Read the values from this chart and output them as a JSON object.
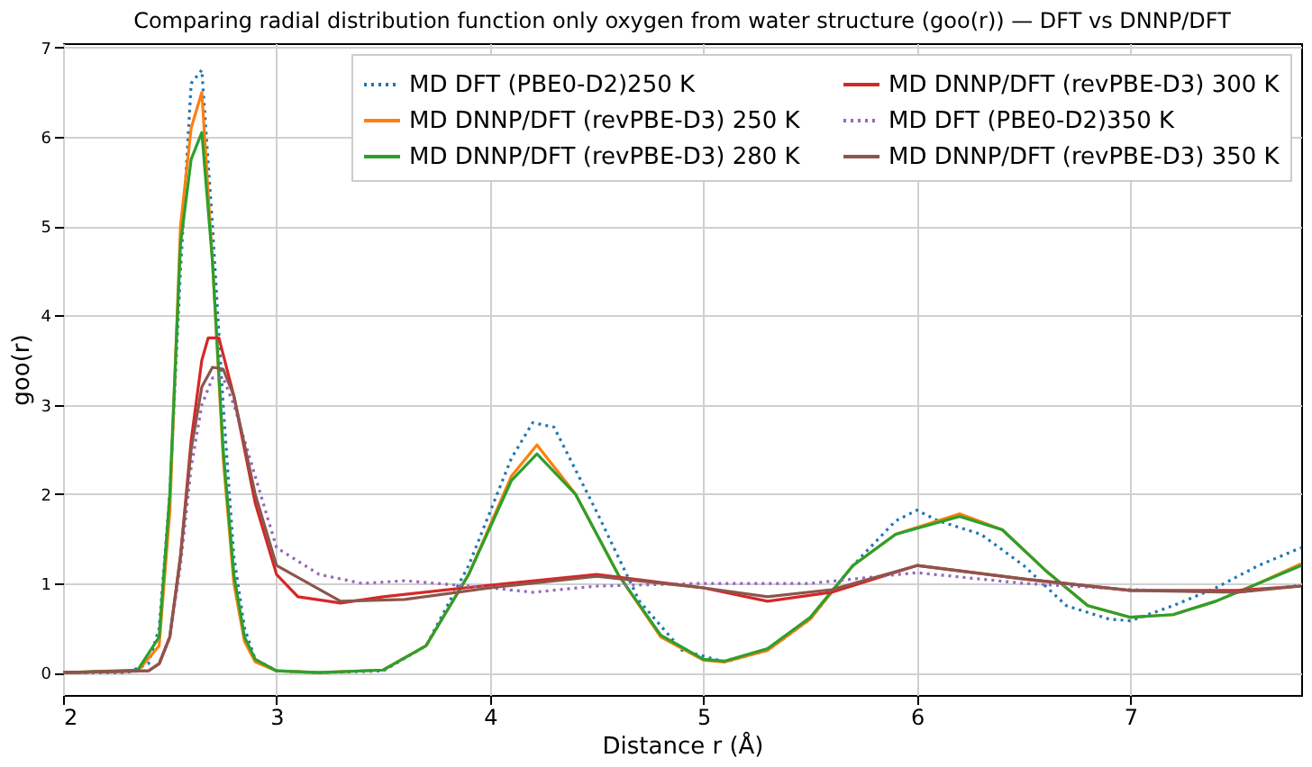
{
  "chart_data": {
    "type": "line",
    "title": "Comparing radial distribution function only oxygen from water structure (goo(r)) — DFT vs DNNP/DFT",
    "xlabel": "Distance r (Å)",
    "ylabel": "goo(r)",
    "xlim": [
      2,
      7.8
    ],
    "ylim": [
      -0.25,
      7.05
    ],
    "xticks": [
      2,
      3,
      4,
      5,
      6,
      7
    ],
    "yticks": [
      0,
      1,
      2,
      3,
      4,
      5,
      6,
      7
    ],
    "grid": true,
    "legend": "top right",
    "marker": "none",
    "series": [
      {
        "name": "MD DFT (PBE0-D2)250 K",
        "color": "#1f77b4",
        "line_style": "dotted",
        "x": [
          2.0,
          2.3,
          2.4,
          2.45,
          2.5,
          2.55,
          2.6,
          2.65,
          2.7,
          2.75,
          2.8,
          2.85,
          2.9,
          3.0,
          3.2,
          3.5,
          3.7,
          3.9,
          4.1,
          4.2,
          4.3,
          4.5,
          4.7,
          4.9,
          5.1,
          5.3,
          5.5,
          5.7,
          5.9,
          6.0,
          6.1,
          6.3,
          6.5,
          6.7,
          6.9,
          7.0,
          7.2,
          7.4,
          7.6,
          7.8
        ],
        "values": [
          0,
          0,
          0.1,
          0.5,
          2.0,
          4.5,
          6.6,
          6.75,
          5.0,
          3.0,
          1.3,
          0.5,
          0.15,
          0.02,
          0,
          0.02,
          0.3,
          1.2,
          2.4,
          2.8,
          2.75,
          1.8,
          0.8,
          0.25,
          0.12,
          0.25,
          0.6,
          1.2,
          1.7,
          1.82,
          1.7,
          1.55,
          1.2,
          0.75,
          0.6,
          0.58,
          0.75,
          0.95,
          1.2,
          1.4
        ]
      },
      {
        "name": "MD DNNP/DFT (revPBE-D3) 250 K",
        "color": "#ff7f0e",
        "line_style": "solid",
        "x": [
          2.0,
          2.35,
          2.45,
          2.5,
          2.55,
          2.6,
          2.65,
          2.7,
          2.75,
          2.8,
          2.85,
          2.9,
          3.0,
          3.2,
          3.5,
          3.7,
          3.9,
          4.1,
          4.22,
          4.4,
          4.6,
          4.8,
          5.0,
          5.1,
          5.3,
          5.5,
          5.7,
          5.9,
          6.2,
          6.4,
          6.6,
          6.8,
          7.0,
          7.2,
          7.4,
          7.6,
          7.8
        ],
        "values": [
          0,
          0.02,
          0.3,
          1.8,
          5.0,
          6.1,
          6.5,
          4.6,
          2.4,
          1.0,
          0.35,
          0.12,
          0.02,
          0,
          0.03,
          0.3,
          1.1,
          2.2,
          2.55,
          2.0,
          1.1,
          0.4,
          0.14,
          0.12,
          0.25,
          0.6,
          1.2,
          1.55,
          1.78,
          1.6,
          1.15,
          0.75,
          0.62,
          0.65,
          0.8,
          1.0,
          1.22
        ]
      },
      {
        "name": "MD DNNP/DFT (revPBE-D3) 280 K",
        "color": "#2ca02c",
        "line_style": "solid",
        "x": [
          2.0,
          2.35,
          2.45,
          2.5,
          2.55,
          2.6,
          2.65,
          2.7,
          2.75,
          2.8,
          2.85,
          2.9,
          3.0,
          3.2,
          3.5,
          3.7,
          3.9,
          4.1,
          4.22,
          4.4,
          4.6,
          4.8,
          5.0,
          5.1,
          5.3,
          5.5,
          5.7,
          5.9,
          6.2,
          6.4,
          6.6,
          6.8,
          7.0,
          7.2,
          7.4,
          7.6,
          7.8
        ],
        "values": [
          0,
          0.03,
          0.4,
          2.0,
          4.8,
          5.75,
          6.05,
          4.6,
          2.5,
          1.1,
          0.4,
          0.15,
          0.02,
          0,
          0.03,
          0.3,
          1.1,
          2.15,
          2.45,
          2.0,
          1.1,
          0.42,
          0.15,
          0.13,
          0.27,
          0.62,
          1.2,
          1.55,
          1.75,
          1.6,
          1.15,
          0.75,
          0.62,
          0.65,
          0.8,
          1.0,
          1.2
        ]
      },
      {
        "name": "MD DNNP/DFT (revPBE-D3) 300 K",
        "color": "#d62728",
        "line_style": "solid",
        "x": [
          2.0,
          2.4,
          2.45,
          2.5,
          2.55,
          2.6,
          2.65,
          2.68,
          2.73,
          2.8,
          2.9,
          3.0,
          3.1,
          3.3,
          3.5,
          4.0,
          4.5,
          5.0,
          5.3,
          5.6,
          6.0,
          6.5,
          7.0,
          7.5,
          7.8
        ],
        "values": [
          0,
          0.02,
          0.1,
          0.4,
          1.3,
          2.6,
          3.5,
          3.75,
          3.75,
          3.1,
          1.9,
          1.1,
          0.85,
          0.78,
          0.85,
          0.98,
          1.1,
          0.95,
          0.8,
          0.9,
          1.2,
          1.05,
          0.92,
          0.92,
          0.97
        ]
      },
      {
        "name": "MD DFT (PBE0-D2)350 K",
        "color": "#9467bd",
        "line_style": "dotted",
        "x": [
          2.0,
          2.4,
          2.45,
          2.5,
          2.55,
          2.6,
          2.65,
          2.7,
          2.75,
          2.8,
          2.9,
          3.0,
          3.2,
          3.4,
          3.6,
          4.0,
          4.2,
          4.5,
          5.0,
          5.5,
          6.0,
          6.5,
          7.0,
          7.5,
          7.8
        ],
        "values": [
          0,
          0.02,
          0.1,
          0.4,
          1.2,
          2.3,
          3.0,
          3.3,
          3.3,
          3.0,
          2.2,
          1.4,
          1.1,
          1.0,
          1.03,
          0.95,
          0.9,
          0.97,
          1.0,
          1.0,
          1.12,
          1.0,
          0.93,
          0.9,
          0.98
        ]
      },
      {
        "name": "MD DNNP/DFT (revPBE-D3) 350 K",
        "color": "#8c564b",
        "line_style": "solid",
        "x": [
          2.0,
          2.4,
          2.45,
          2.5,
          2.55,
          2.6,
          2.65,
          2.7,
          2.75,
          2.8,
          2.9,
          3.0,
          3.3,
          3.6,
          4.0,
          4.5,
          5.0,
          5.3,
          5.6,
          6.0,
          6.5,
          7.0,
          7.5,
          7.8
        ],
        "values": [
          0,
          0.02,
          0.1,
          0.4,
          1.3,
          2.5,
          3.2,
          3.42,
          3.4,
          3.1,
          2.0,
          1.2,
          0.8,
          0.82,
          0.95,
          1.08,
          0.95,
          0.85,
          0.93,
          1.2,
          1.05,
          0.92,
          0.9,
          0.97
        ]
      }
    ]
  }
}
